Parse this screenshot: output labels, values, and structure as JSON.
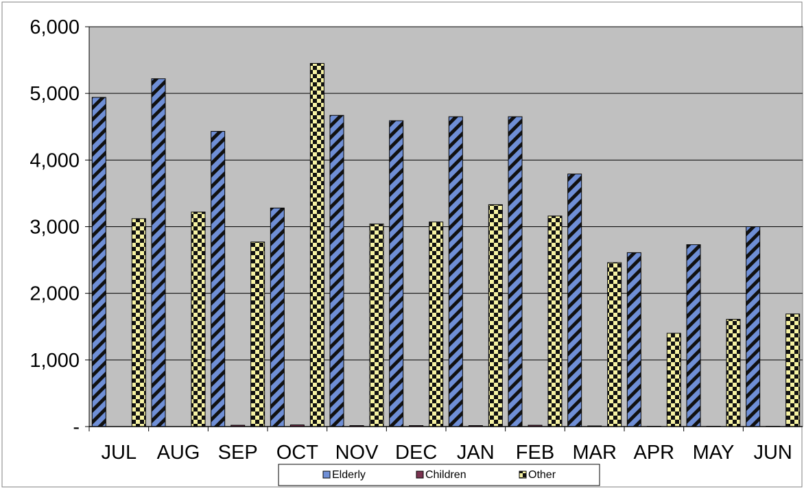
{
  "chart_data": {
    "type": "bar",
    "title": "",
    "xlabel": "",
    "ylabel": "",
    "categories": [
      "JUL",
      "AUG",
      "SEP",
      "OCT",
      "NOV",
      "DEC",
      "JAN",
      "FEB",
      "MAR",
      "APR",
      "MAY",
      "JUN"
    ],
    "series": [
      {
        "name": "Elderly",
        "values": [
          4940,
          5220,
          4430,
          3280,
          4670,
          4590,
          4650,
          4650,
          3790,
          2610,
          2730,
          3000
        ]
      },
      {
        "name": "Children",
        "values": [
          0,
          0,
          20,
          25,
          15,
          15,
          15,
          20,
          10,
          5,
          5,
          5
        ]
      },
      {
        "name": "Other",
        "values": [
          3120,
          3220,
          2770,
          5450,
          3040,
          3070,
          3330,
          3160,
          2460,
          1400,
          1610,
          1690
        ]
      }
    ],
    "ylim": [
      0,
      6000
    ],
    "yticks": [
      0,
      1000,
      2000,
      3000,
      4000,
      5000,
      6000
    ],
    "ytick_labels": [
      "-",
      "1,000",
      "2,000",
      "3,000",
      "4,000",
      "5,000",
      "6,000"
    ],
    "grid": true,
    "legend_position": "bottom",
    "colors": {
      "plot_background": "#c0c0c0",
      "Elderly": "#6f8fd6",
      "Children": "#7a3350",
      "Other": "#f7f3a3",
      "pattern_ink": "#111111"
    }
  }
}
